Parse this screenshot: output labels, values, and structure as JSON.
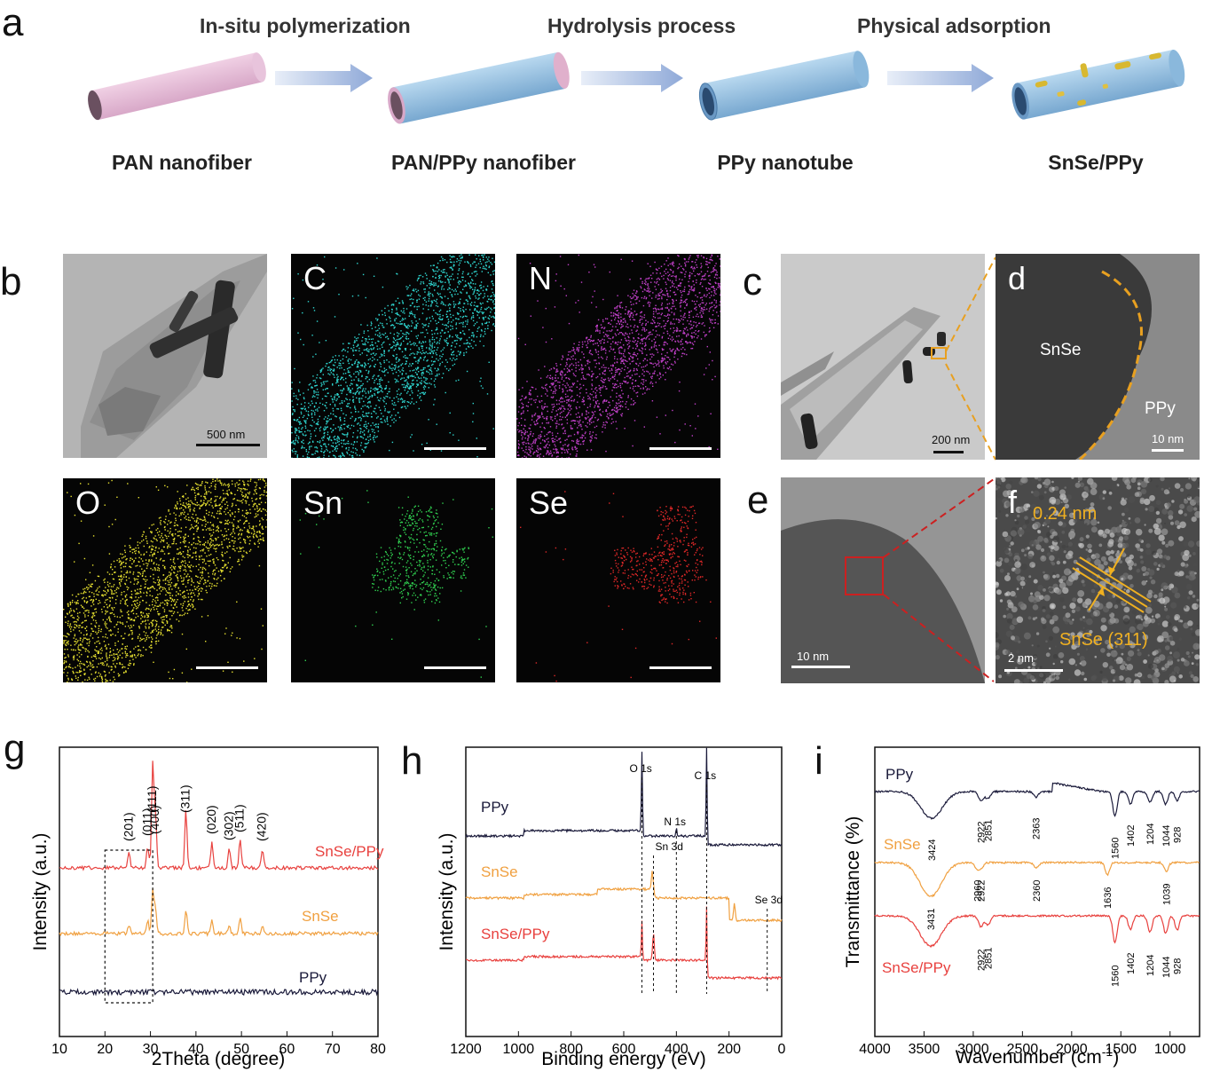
{
  "panel_a": {
    "label": "a",
    "steps": [
      "In-situ polymerization",
      "Hydrolysis process",
      "Physical adsorption"
    ],
    "stages": [
      "PAN nanofiber",
      "PAN/PPy nanofiber",
      "PPy nanotube",
      "SnSe/PPy"
    ]
  },
  "panel_b": {
    "label": "b",
    "tem_scale": "500 nm",
    "maps": [
      {
        "element": "C",
        "color": "#2fd6d0"
      },
      {
        "element": "N",
        "color": "#c040c8"
      },
      {
        "element": "O",
        "color": "#e6e030"
      },
      {
        "element": "Sn",
        "color": "#30d050"
      },
      {
        "element": "Se",
        "color": "#e02828"
      }
    ]
  },
  "panel_c": {
    "label": "c",
    "scale": "200 nm"
  },
  "panel_d": {
    "label": "d",
    "scale": "10 nm",
    "annot_snse": "SnSe",
    "annot_ppy": "PPy"
  },
  "panel_e": {
    "label": "e",
    "scale": "10 nm"
  },
  "panel_f": {
    "label": "f",
    "scale": "2 nm",
    "spacing": "0.24 nm",
    "plane": "SnSe (311)"
  },
  "colors": {
    "snse_ppy": "#e8413e",
    "snse": "#f0a040",
    "ppy": "#1a1a3a",
    "lattice": "#f0b020"
  },
  "chart_data": [
    {
      "type": "line",
      "panel": "g",
      "xlabel": "2Theta (degree)",
      "ylabel": "Intensity (a.u.)",
      "xlim": [
        10,
        80
      ],
      "xticks": [
        "10",
        "20",
        "30",
        "40",
        "50",
        "60",
        "70",
        "80"
      ],
      "series": [
        {
          "name": "SnSe/PPy",
          "peaks": [
            [
              25.3,
              0.15
            ],
            [
              29.4,
              0.2
            ],
            [
              30.5,
              1.0
            ],
            [
              31.1,
              0.5
            ],
            [
              37.8,
              0.55
            ],
            [
              43.5,
              0.25
            ],
            [
              47.3,
              0.2
            ],
            [
              49.7,
              0.28
            ],
            [
              54.6,
              0.18
            ]
          ]
        },
        {
          "name": "SnSe",
          "peaks": [
            [
              25.3,
              0.12
            ],
            [
              29.4,
              0.18
            ],
            [
              30.5,
              0.6
            ],
            [
              31.1,
              0.35
            ],
            [
              37.8,
              0.32
            ],
            [
              43.5,
              0.2
            ],
            [
              47.3,
              0.12
            ],
            [
              49.7,
              0.22
            ],
            [
              54.6,
              0.12
            ]
          ]
        },
        {
          "name": "PPy",
          "peaks": []
        }
      ],
      "annotations": [
        "(201)",
        "(011)",
        "(111)",
        "(400)",
        "(311)",
        "(020)",
        "(302)",
        "(511)",
        "(420)"
      ],
      "annotation_x": [
        25.3,
        29.4,
        30.5,
        31.1,
        37.8,
        43.5,
        47.3,
        49.7,
        54.6
      ]
    },
    {
      "type": "line",
      "panel": "h",
      "xlabel": "Binding energy (eV)",
      "ylabel": "Intensity (a.u.)",
      "xlim": [
        1200,
        0
      ],
      "xticks": [
        "1200",
        "1000",
        "800",
        "600",
        "400",
        "200",
        "0"
      ],
      "series": [
        {
          "name": "PPy"
        },
        {
          "name": "SnSe"
        },
        {
          "name": "SnSe/PPy"
        }
      ],
      "annotations": [
        {
          "text": "O 1s",
          "x": 531
        },
        {
          "text": "Sn 3d",
          "x": 487
        },
        {
          "text": "N 1s",
          "x": 400
        },
        {
          "text": "C 1s",
          "x": 285
        },
        {
          "text": "Se 3d",
          "x": 55
        }
      ]
    },
    {
      "type": "line",
      "panel": "i",
      "xlabel": "Wavenumber (cm",
      "xlabel_sup": "-1",
      "xlabel_end": ")",
      "ylabel": "Transmittance (%)",
      "xlim": [
        4000,
        700
      ],
      "xticks": [
        "4000",
        "3500",
        "3000",
        "2500",
        "2000",
        "1500",
        "1000"
      ],
      "series": [
        {
          "name": "PPy",
          "bands": [
            "3424",
            "2922",
            "2851",
            "2363",
            "1560",
            "1402",
            "1204",
            "1044",
            "928"
          ],
          "band_x": [
            3424,
            2922,
            2851,
            2363,
            1560,
            1402,
            1204,
            1044,
            928
          ]
        },
        {
          "name": "SnSe",
          "bands": [
            "3431",
            "2960",
            "2922",
            "2360",
            "1636",
            "1039"
          ],
          "band_x": [
            3431,
            2960,
            2922,
            2360,
            1636,
            1039
          ]
        },
        {
          "name": "SnSe/PPy",
          "bands": [
            "2922",
            "2851",
            "1560",
            "1402",
            "1204",
            "1044",
            "928"
          ],
          "band_x": [
            2922,
            2851,
            1560,
            1402,
            1204,
            1044,
            928
          ]
        }
      ]
    }
  ]
}
